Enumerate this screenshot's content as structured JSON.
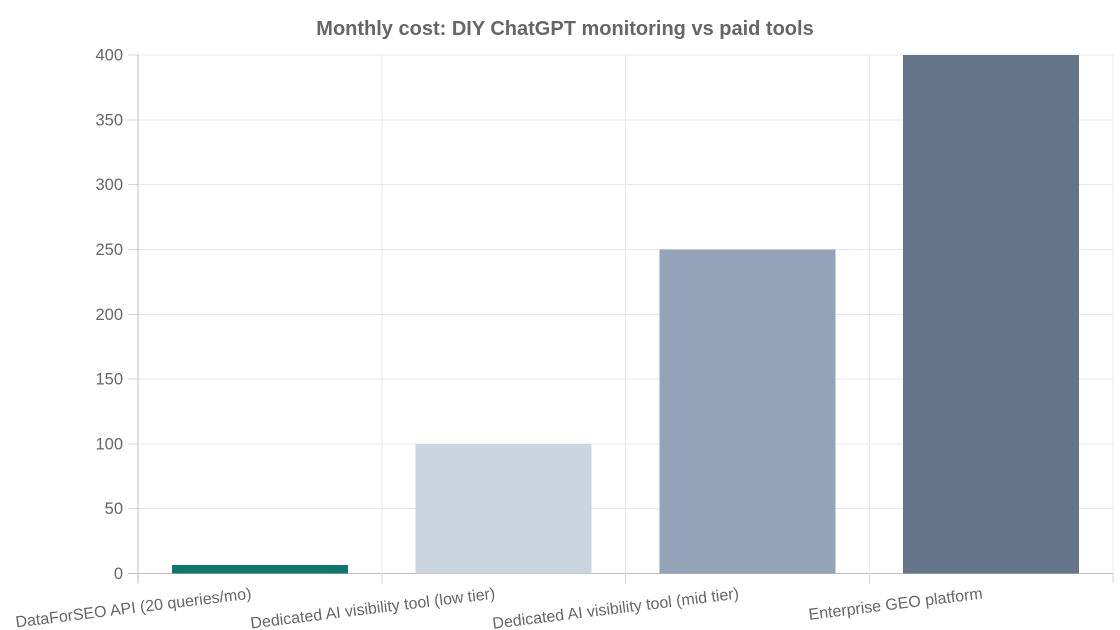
{
  "chart_data": {
    "type": "bar",
    "title": "Monthly cost: DIY ChatGPT monitoring vs paid tools",
    "categories": [
      "DataForSEO API (20 queries/mo)",
      "Dedicated AI visibility tool (low tier)",
      "Dedicated AI visibility tool (mid tier)",
      "Enterprise GEO platform"
    ],
    "values": [
      6.5,
      100,
      250,
      400
    ],
    "bar_colors": [
      "#0f766e",
      "#cbd5e1",
      "#94a3b8",
      "#64748b"
    ],
    "ylim": [
      0,
      400
    ],
    "ytick_step": 50,
    "ytick_labels": [
      "0",
      "50",
      "100",
      "150",
      "200",
      "250",
      "300",
      "350",
      "400"
    ],
    "xlabel": "",
    "ylabel": "",
    "grid": true,
    "legend_position": "none",
    "title_color": "#666666",
    "tick_label_color": "#666666"
  }
}
